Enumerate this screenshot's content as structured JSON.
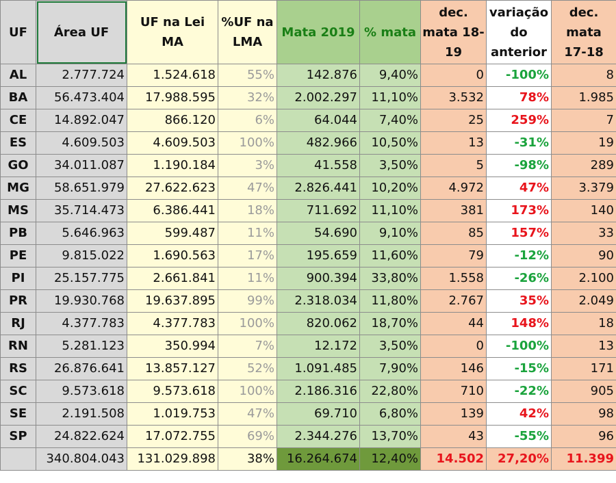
{
  "headers": {
    "uf": "UF",
    "area": "Área UF",
    "lei": "UF na Lei MA",
    "pct_lma": "%UF na LMA",
    "mata": "Mata 2019",
    "pct_mata": "% mata",
    "dec_1819": "dec. mata 18-19",
    "variacao": "variação do anterior",
    "dec_1718": "dec. mata 17-18"
  },
  "colors": {
    "gray": "#d9d9d9",
    "yellow": "#fffcd8",
    "green": "#c6e0b4",
    "green_dark": "#6f9a3c",
    "orange": "#f8cbad",
    "positive_red": "#e8141c",
    "negative_green": "#1aa33c"
  },
  "rows": [
    {
      "uf": "AL",
      "area": "2.777.724",
      "lei": "1.524.618",
      "pct_lma": "55%",
      "mata": "142.876",
      "pct_mata": "9,40%",
      "dec_1819": "0",
      "variacao": "-100%",
      "dec_1718": "8"
    },
    {
      "uf": "BA",
      "area": "56.473.404",
      "lei": "17.988.595",
      "pct_lma": "32%",
      "mata": "2.002.297",
      "pct_mata": "11,10%",
      "dec_1819": "3.532",
      "variacao": "78%",
      "dec_1718": "1.985"
    },
    {
      "uf": "CE",
      "area": "14.892.047",
      "lei": "866.120",
      "pct_lma": "6%",
      "mata": "64.044",
      "pct_mata": "7,40%",
      "dec_1819": "25",
      "variacao": "259%",
      "dec_1718": "7"
    },
    {
      "uf": "ES",
      "area": "4.609.503",
      "lei": "4.609.503",
      "pct_lma": "100%",
      "mata": "482.966",
      "pct_mata": "10,50%",
      "dec_1819": "13",
      "variacao": "-31%",
      "dec_1718": "19"
    },
    {
      "uf": "GO",
      "area": "34.011.087",
      "lei": "1.190.184",
      "pct_lma": "3%",
      "mata": "41.558",
      "pct_mata": "3,50%",
      "dec_1819": "5",
      "variacao": "-98%",
      "dec_1718": "289"
    },
    {
      "uf": "MG",
      "area": "58.651.979",
      "lei": "27.622.623",
      "pct_lma": "47%",
      "mata": "2.826.441",
      "pct_mata": "10,20%",
      "dec_1819": "4.972",
      "variacao": "47%",
      "dec_1718": "3.379"
    },
    {
      "uf": "MS",
      "area": "35.714.473",
      "lei": "6.386.441",
      "pct_lma": "18%",
      "mata": "711.692",
      "pct_mata": "11,10%",
      "dec_1819": "381",
      "variacao": "173%",
      "dec_1718": "140"
    },
    {
      "uf": "PB",
      "area": "5.646.963",
      "lei": "599.487",
      "pct_lma": "11%",
      "mata": "54.690",
      "pct_mata": "9,10%",
      "dec_1819": "85",
      "variacao": "157%",
      "dec_1718": "33"
    },
    {
      "uf": "PE",
      "area": "9.815.022",
      "lei": "1.690.563",
      "pct_lma": "17%",
      "mata": "195.659",
      "pct_mata": "11,60%",
      "dec_1819": "79",
      "variacao": "-12%",
      "dec_1718": "90"
    },
    {
      "uf": "PI",
      "area": "25.157.775",
      "lei": "2.661.841",
      "pct_lma": "11%",
      "mata": "900.394",
      "pct_mata": "33,80%",
      "dec_1819": "1.558",
      "variacao": "-26%",
      "dec_1718": "2.100"
    },
    {
      "uf": "PR",
      "area": "19.930.768",
      "lei": "19.637.895",
      "pct_lma": "99%",
      "mata": "2.318.034",
      "pct_mata": "11,80%",
      "dec_1819": "2.767",
      "variacao": "35%",
      "dec_1718": "2.049"
    },
    {
      "uf": "RJ",
      "area": "4.377.783",
      "lei": "4.377.783",
      "pct_lma": "100%",
      "mata": "820.062",
      "pct_mata": "18,70%",
      "dec_1819": "44",
      "variacao": "148%",
      "dec_1718": "18"
    },
    {
      "uf": "RN",
      "area": "5.281.123",
      "lei": "350.994",
      "pct_lma": "7%",
      "mata": "12.172",
      "pct_mata": "3,50%",
      "dec_1819": "0",
      "variacao": "-100%",
      "dec_1718": "13"
    },
    {
      "uf": "RS",
      "area": "26.876.641",
      "lei": "13.857.127",
      "pct_lma": "52%",
      "mata": "1.091.485",
      "pct_mata": "7,90%",
      "dec_1819": "146",
      "variacao": "-15%",
      "dec_1718": "171"
    },
    {
      "uf": "SC",
      "area": "9.573.618",
      "lei": "9.573.618",
      "pct_lma": "100%",
      "mata": "2.186.316",
      "pct_mata": "22,80%",
      "dec_1819": "710",
      "variacao": "-22%",
      "dec_1718": "905"
    },
    {
      "uf": "SE",
      "area": "2.191.508",
      "lei": "1.019.753",
      "pct_lma": "47%",
      "mata": "69.710",
      "pct_mata": "6,80%",
      "dec_1819": "139",
      "variacao": "42%",
      "dec_1718": "98"
    },
    {
      "uf": "SP",
      "area": "24.822.624",
      "lei": "17.072.755",
      "pct_lma": "69%",
      "mata": "2.344.276",
      "pct_mata": "13,70%",
      "dec_1819": "43",
      "variacao": "-55%",
      "dec_1718": "96"
    }
  ],
  "total": {
    "uf": "",
    "area": "340.804.043",
    "lei": "131.029.898",
    "pct_lma": "38%",
    "mata": "16.264.674",
    "pct_mata": "12,40%",
    "dec_1819": "14.502",
    "variacao": "27,20%",
    "dec_1718": "11.399"
  }
}
